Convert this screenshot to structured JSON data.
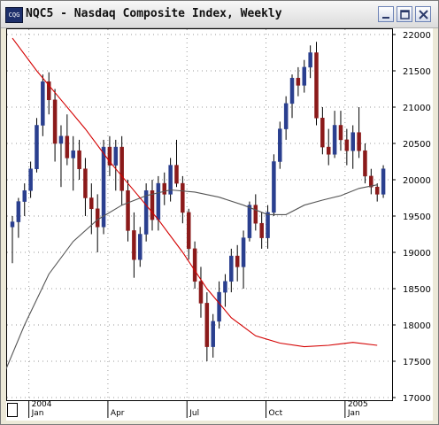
{
  "window": {
    "title": "NQC5 - Nasdaq Composite Index, Weekly",
    "icon": "chart-app-icon",
    "buttons": [
      "minimize-icon",
      "maximize-icon",
      "close-icon"
    ]
  },
  "colors": {
    "up": "#2a3f8f",
    "down": "#8b1a1a",
    "ma_fast": "#d40000",
    "ma_slow": "#555555",
    "grid": "#9a9a9a"
  },
  "chart_data": {
    "type": "candlestick",
    "title": "",
    "xlabel": "",
    "ylabel": "",
    "ylim": [
      16900,
      22100
    ],
    "y_ticks": [
      17000,
      17500,
      18000,
      18500,
      19000,
      19500,
      20000,
      20500,
      21000,
      21500,
      22000
    ],
    "x_ticks": [
      {
        "label": "2004",
        "week": 3
      },
      {
        "label": "Jan",
        "week": 3
      },
      {
        "label": "Apr",
        "week": 16
      },
      {
        "label": "Jul",
        "week": 29
      },
      {
        "label": "Oct",
        "week": 42
      },
      {
        "label": "2005",
        "week": 55
      },
      {
        "label": "Jan",
        "week": 55
      }
    ],
    "grid": true,
    "candles": [
      [
        19350,
        19500,
        18850,
        19420
      ],
      [
        19420,
        19750,
        19200,
        19700
      ],
      [
        19700,
        19950,
        19500,
        19850
      ],
      [
        19850,
        20250,
        19750,
        20150
      ],
      [
        20150,
        20850,
        20100,
        20750
      ],
      [
        20750,
        21450,
        20600,
        21350
      ],
      [
        21350,
        21480,
        20900,
        21100
      ],
      [
        21100,
        21250,
        20250,
        20500
      ],
      [
        20500,
        20750,
        19900,
        20600
      ],
      [
        20600,
        20900,
        20200,
        20300
      ],
      [
        20300,
        20600,
        19850,
        20400
      ],
      [
        20400,
        20550,
        20000,
        20150
      ],
      [
        20150,
        20300,
        19500,
        19750
      ],
      [
        19750,
        19950,
        19250,
        19600
      ],
      [
        19600,
        19800,
        19000,
        19350
      ],
      [
        19350,
        20550,
        19250,
        20450
      ],
      [
        20450,
        20600,
        20050,
        20200
      ],
      [
        20200,
        20550,
        19850,
        20450
      ],
      [
        20450,
        20600,
        19650,
        19850
      ],
      [
        19850,
        20000,
        19150,
        19300
      ],
      [
        19300,
        19550,
        18650,
        18900
      ],
      [
        18900,
        19350,
        18800,
        19250
      ],
      [
        19250,
        19950,
        19150,
        19850
      ],
      [
        19850,
        20000,
        19300,
        19450
      ],
      [
        19450,
        20050,
        19300,
        19950
      ],
      [
        19950,
        20100,
        19650,
        19800
      ],
      [
        19800,
        20300,
        19700,
        20200
      ],
      [
        20200,
        20550,
        19900,
        19950
      ],
      [
        19950,
        20050,
        19400,
        19550
      ],
      [
        19550,
        19600,
        18900,
        19050
      ],
      [
        19050,
        19150,
        18500,
        18600
      ],
      [
        18600,
        18800,
        18100,
        18300
      ],
      [
        18300,
        18450,
        17500,
        17700
      ],
      [
        17700,
        18150,
        17550,
        18050
      ],
      [
        18050,
        18600,
        17950,
        18450
      ],
      [
        18450,
        18700,
        18250,
        18600
      ],
      [
        18600,
        19050,
        18450,
        18950
      ],
      [
        18950,
        19100,
        18600,
        18800
      ],
      [
        18800,
        19300,
        18500,
        19200
      ],
      [
        19200,
        19700,
        19150,
        19650
      ],
      [
        19650,
        19800,
        19300,
        19400
      ],
      [
        19400,
        19550,
        19050,
        19200
      ],
      [
        19200,
        19650,
        19050,
        19550
      ],
      [
        19550,
        20350,
        19500,
        20250
      ],
      [
        20250,
        20800,
        20150,
        20700
      ],
      [
        20700,
        21150,
        20550,
        21050
      ],
      [
        21050,
        21450,
        20850,
        21400
      ],
      [
        21400,
        21550,
        21150,
        21300
      ],
      [
        21300,
        21650,
        21200,
        21550
      ],
      [
        21550,
        21850,
        21400,
        21750
      ],
      [
        21750,
        21900,
        20750,
        20850
      ],
      [
        20850,
        21000,
        20350,
        20450
      ],
      [
        20450,
        20700,
        20200,
        20350
      ],
      [
        20350,
        20950,
        20300,
        20750
      ],
      [
        20750,
        20950,
        20400,
        20550
      ],
      [
        20550,
        20700,
        20200,
        20400
      ],
      [
        20400,
        20750,
        20150,
        20650
      ],
      [
        20650,
        21000,
        20300,
        20400
      ],
      [
        20400,
        20500,
        19950,
        20050
      ],
      [
        20050,
        20150,
        19800,
        19900
      ],
      [
        19900,
        19950,
        19700,
        19800
      ],
      [
        19800,
        20200,
        19750,
        20150
      ]
    ],
    "ma_fast": [
      [
        0,
        21950
      ],
      [
        4,
        21500
      ],
      [
        8,
        21100
      ],
      [
        12,
        20700
      ],
      [
        16,
        20250
      ],
      [
        20,
        19850
      ],
      [
        24,
        19450
      ],
      [
        28,
        19000
      ],
      [
        32,
        18500
      ],
      [
        36,
        18100
      ],
      [
        40,
        17850
      ],
      [
        44,
        17750
      ],
      [
        48,
        17700
      ],
      [
        52,
        17720
      ],
      [
        56,
        17760
      ],
      [
        60,
        17720
      ]
    ],
    "ma_slow": [
      [
        -3,
        17000
      ],
      [
        2,
        18000
      ],
      [
        6,
        18700
      ],
      [
        10,
        19150
      ],
      [
        14,
        19450
      ],
      [
        18,
        19650
      ],
      [
        22,
        19780
      ],
      [
        26,
        19860
      ],
      [
        30,
        19830
      ],
      [
        34,
        19760
      ],
      [
        38,
        19650
      ],
      [
        42,
        19520
      ],
      [
        45,
        19520
      ],
      [
        48,
        19650
      ],
      [
        51,
        19720
      ],
      [
        54,
        19780
      ],
      [
        57,
        19880
      ],
      [
        60,
        19930
      ]
    ]
  }
}
